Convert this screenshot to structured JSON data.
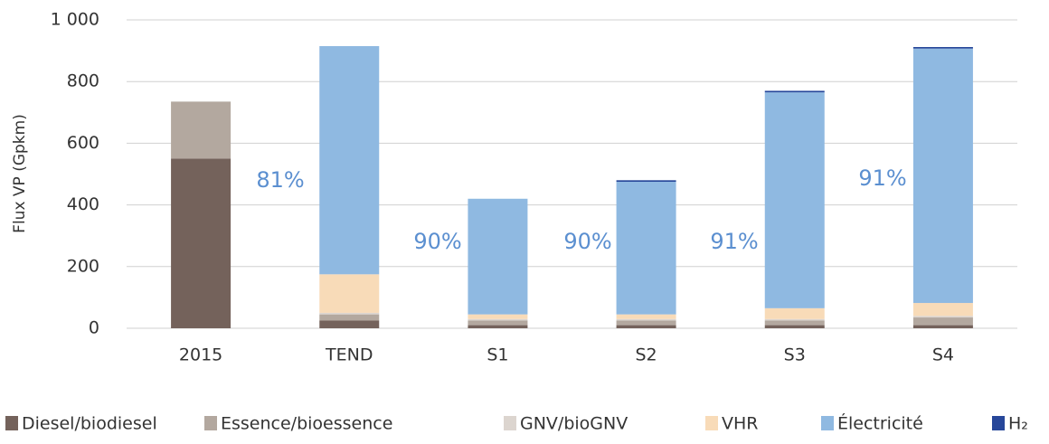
{
  "chart_data": {
    "type": "stacked_bar",
    "y_label": "Flux VP (Gpkm)",
    "categories": [
      "2015",
      "TEND",
      "S1",
      "S2",
      "S3",
      "S4"
    ],
    "series": [
      {
        "name": "Diesel/biodiesel",
        "color": "#74625b",
        "values": [
          550,
          25,
          10,
          10,
          10,
          10
        ]
      },
      {
        "name": "Essence/bioessence",
        "color": "#b3a89f",
        "values": [
          185,
          20,
          15,
          15,
          15,
          25
        ]
      },
      {
        "name": "GNV/bioGNV",
        "color": "#dcd5cf",
        "values": [
          0,
          5,
          5,
          5,
          5,
          5
        ]
      },
      {
        "name": "VHR",
        "color": "#f8dbb8",
        "values": [
          0,
          125,
          15,
          15,
          35,
          42
        ]
      },
      {
        "name": "Électricité",
        "color": "#8fb9e1",
        "values": [
          0,
          740,
          375,
          430,
          700,
          825
        ]
      },
      {
        "name": "H₂",
        "color": "#27479a",
        "values": [
          0,
          0,
          0,
          5,
          5,
          5
        ]
      }
    ],
    "annotations": [
      "81%",
      "90%",
      "90%",
      "91%",
      "91%"
    ],
    "ylim": [
      0,
      1000
    ],
    "yticks": [
      0,
      200,
      400,
      600,
      800,
      {
        "value": 1000,
        "label": "1 000"
      }
    ],
    "grid": true
  }
}
